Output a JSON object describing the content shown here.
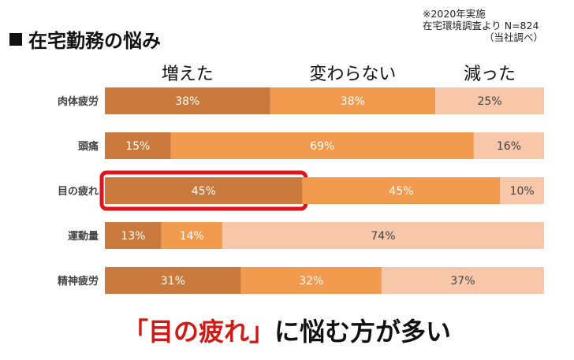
{
  "title": "在宅勤務の悩み",
  "source": {
    "line1": "※2020年実施",
    "line2": "在宅環境調査より N=824",
    "line3": "（当社調べ）"
  },
  "tagline": {
    "highlight": "「目の疲れ」",
    "rest": "に悩む方が多い"
  },
  "colors": {
    "increased": "#c97a3c",
    "unchanged": "#f29a4e",
    "decreased": "#f8c7a9",
    "highlight_border": "#e0141a"
  },
  "chart_data": {
    "type": "bar",
    "orientation": "horizontal-stacked-100",
    "categories": [
      "肉体疲労",
      "頭痛",
      "目の疲れ",
      "運動量",
      "精神疲労"
    ],
    "series": [
      {
        "name": "増えた",
        "values": [
          38,
          15,
          45,
          13,
          31
        ],
        "labels": [
          "38%",
          "15%",
          "45%",
          "13%",
          "31%"
        ]
      },
      {
        "name": "変わらない",
        "values": [
          38,
          69,
          45,
          14,
          32
        ],
        "labels": [
          "38%",
          "69%",
          "45%",
          "14%",
          "32%"
        ]
      },
      {
        "name": "減った",
        "values": [
          25,
          16,
          10,
          74,
          37
        ],
        "labels": [
          "25%",
          "16%",
          "10%",
          "74%",
          "37%"
        ]
      }
    ],
    "highlight": {
      "category": "目の疲れ",
      "series": "増えた"
    },
    "xlim": [
      0,
      100
    ],
    "legend_position": "top"
  }
}
